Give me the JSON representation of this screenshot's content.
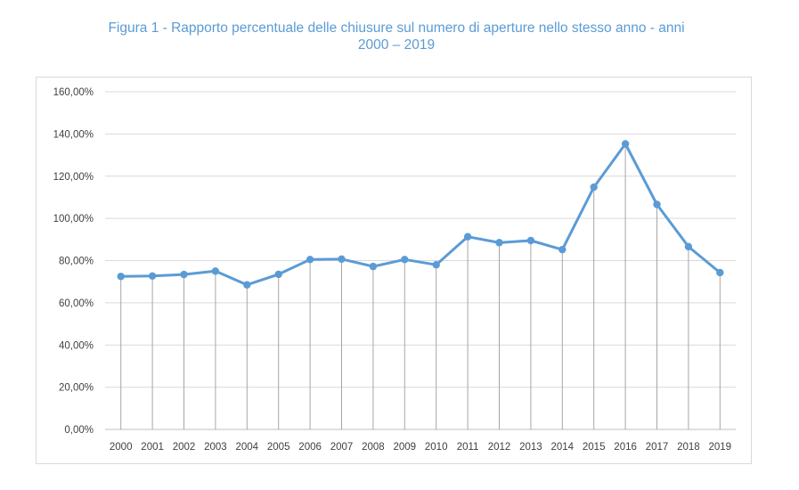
{
  "title": {
    "line1": "Figura 1 - Rapporto percentuale delle chiusure sul numero di aperture nello stesso anno - anni",
    "line2": "2000 – 2019"
  },
  "chart_data": {
    "type": "line",
    "categories": [
      "2000",
      "2001",
      "2002",
      "2003",
      "2004",
      "2005",
      "2006",
      "2007",
      "2008",
      "2009",
      "2010",
      "2011",
      "2012",
      "2013",
      "2014",
      "2015",
      "2016",
      "2017",
      "2018",
      "2019"
    ],
    "series": [
      {
        "values": [
          72.5,
          72.7,
          73.4,
          75.0,
          68.5,
          73.5,
          80.5,
          80.7,
          77.2,
          80.5,
          78.0,
          91.3,
          88.5,
          89.5,
          85.2,
          114.8,
          135.3,
          106.6,
          86.6,
          74.3
        ],
        "color": "#5b9bd5"
      }
    ],
    "ylim": [
      0,
      160
    ],
    "yticks": [
      0,
      20,
      40,
      60,
      80,
      100,
      120,
      140,
      160
    ],
    "ytick_labels": [
      "0,00%",
      "20,00%",
      "40,00%",
      "60,00%",
      "80,00%",
      "100,00%",
      "120,00%",
      "140,00%",
      "160,00%"
    ],
    "grid": true,
    "drop_lines": true,
    "xlabel": "",
    "ylabel": ""
  }
}
